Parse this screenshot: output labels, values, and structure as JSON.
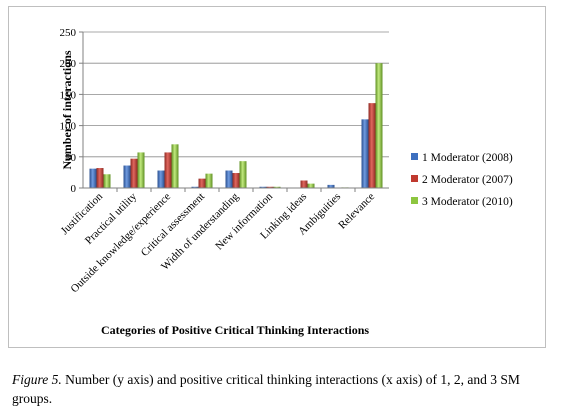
{
  "chart_data": {
    "type": "bar",
    "title": "",
    "xlabel": "Categories of Positive Critical Thinking Interactions",
    "ylabel": "Number of interactions",
    "ylim": [
      0,
      250
    ],
    "yticks": [
      0,
      50,
      100,
      150,
      200,
      250
    ],
    "grid": true,
    "legend_position": "right",
    "categories": [
      "Justification",
      "Practical utility",
      "Outside knowledge/experience",
      "Critical assessment",
      "Width of understanding",
      "New information",
      "Linking ideas",
      "Ambiguities",
      "Relevance"
    ],
    "series": [
      {
        "name": "1 Moderator (2008)",
        "color": "#3d6fbf",
        "values": [
          31,
          36,
          28,
          2,
          28,
          2,
          0,
          5,
          110
        ]
      },
      {
        "name": "2 Moderator (2007)",
        "color": "#c0392f",
        "values": [
          32,
          47,
          57,
          15,
          24,
          2,
          12,
          0,
          136
        ]
      },
      {
        "name": "3 Moderator (2010)",
        "color": "#8dc63f",
        "values": [
          22,
          57,
          70,
          23,
          43,
          2,
          7,
          1,
          200
        ]
      }
    ]
  },
  "caption": {
    "figure_label": "Figure 5.",
    "text": " Number (y axis) and positive critical thinking interactions (x axis) of 1, 2, and 3 SM groups."
  }
}
